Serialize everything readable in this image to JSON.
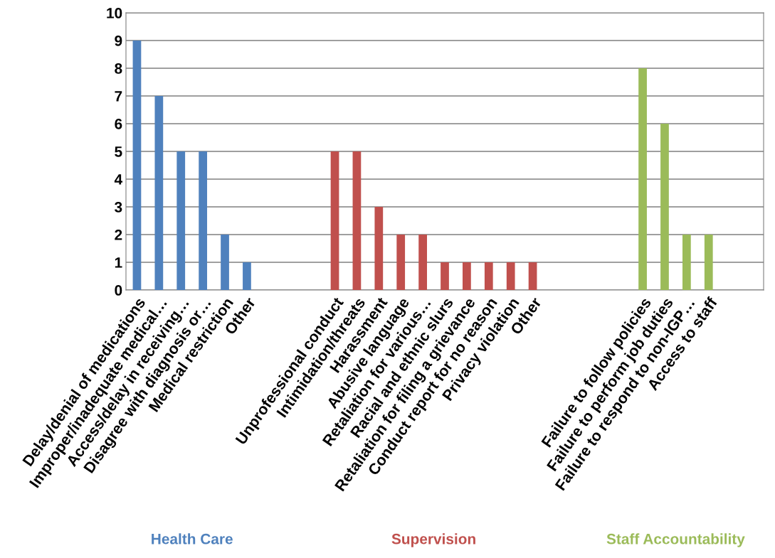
{
  "chart_data": {
    "type": "bar",
    "categories": [
      "Delay/denial of medications",
      "Improper/inadequate medical…",
      "Access/delay in receiving…",
      "Disagree with diagnosis or…",
      "Medical restriction",
      "Other",
      null,
      null,
      null,
      "Unprofessional conduct",
      "Intimidation/threats",
      "Harassment",
      "Abusive language",
      "Retaliation for various…",
      "Racial and ethnic slurs",
      "Retaliation for filing a grievance",
      "Conduct report for no reason",
      "Privacy violation",
      "Other",
      null,
      null,
      null,
      null,
      "Failure to follow policies",
      "Failure to perform job duties",
      "Failure to respond to non-IGP…",
      "Access to staff",
      null,
      null
    ],
    "series": [
      {
        "name": "Health Care",
        "color": "#4f81bd",
        "values": [
          9,
          7,
          5,
          5,
          2,
          1,
          null,
          null,
          null,
          null,
          null,
          null,
          null,
          null,
          null,
          null,
          null,
          null,
          null,
          null,
          null,
          null,
          null,
          null,
          null,
          null,
          null,
          null,
          null
        ]
      },
      {
        "name": "Supervision",
        "color": "#c0504d",
        "values": [
          null,
          null,
          null,
          null,
          null,
          null,
          null,
          null,
          null,
          5,
          5,
          3,
          2,
          2,
          1,
          1,
          1,
          1,
          1,
          null,
          null,
          null,
          null,
          null,
          null,
          null,
          null,
          null,
          null
        ]
      },
      {
        "name": "Staff Accountability",
        "color": "#9bbb59",
        "values": [
          null,
          null,
          null,
          null,
          null,
          null,
          null,
          null,
          null,
          null,
          null,
          null,
          null,
          null,
          null,
          null,
          null,
          null,
          null,
          null,
          null,
          null,
          null,
          8,
          6,
          2,
          2,
          null,
          null
        ]
      }
    ],
    "ylim": [
      0,
      10
    ],
    "yticks": [
      0,
      1,
      2,
      3,
      4,
      5,
      6,
      7,
      8,
      9,
      10
    ],
    "grid": "y",
    "legend": false
  }
}
